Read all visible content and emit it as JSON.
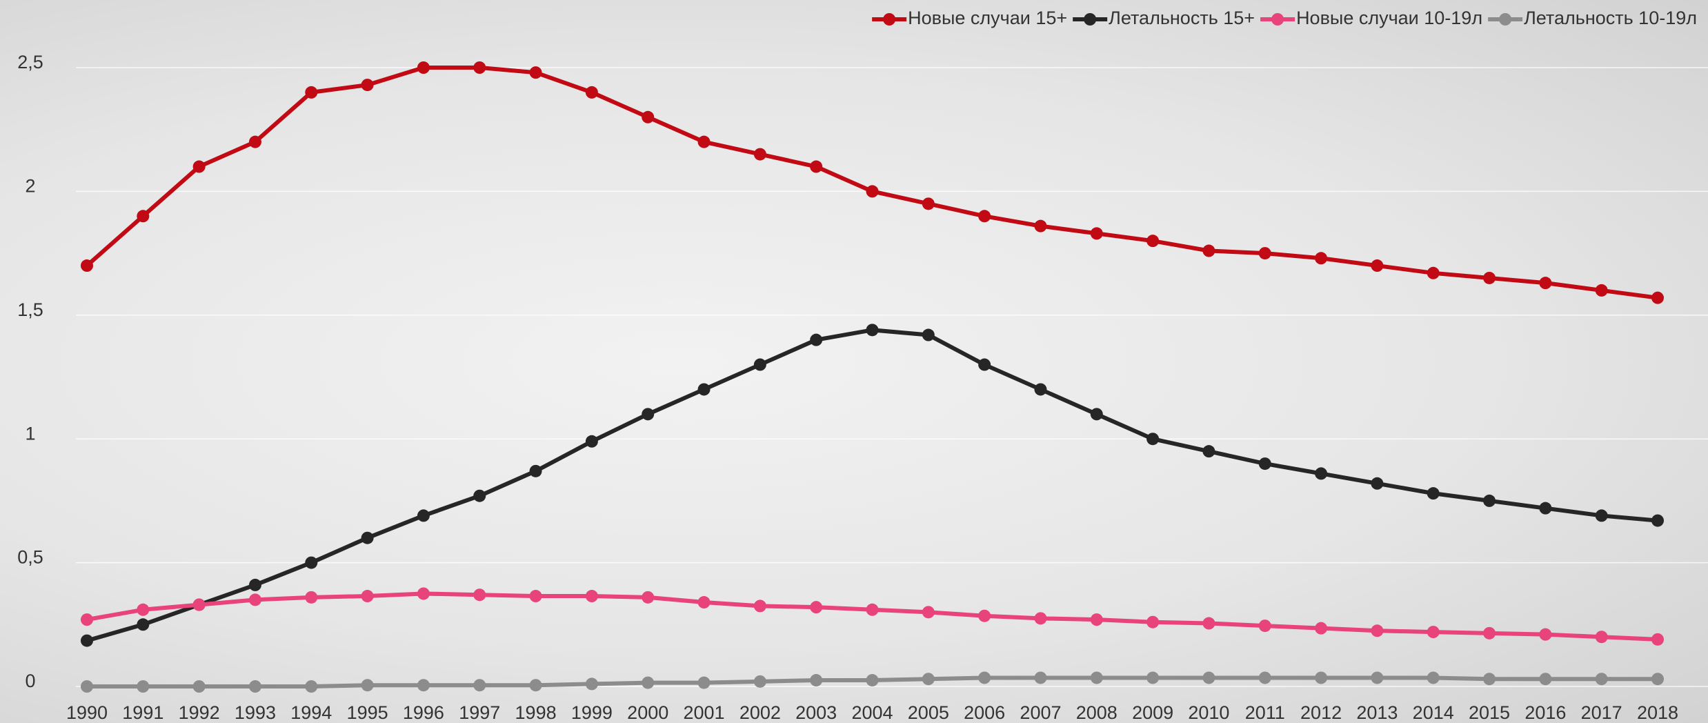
{
  "chart_data": {
    "type": "line",
    "categories": [
      "1990",
      "1991",
      "1992",
      "1993",
      "1994",
      "1995",
      "1996",
      "1997",
      "1998",
      "1999",
      "2000",
      "2001",
      "2002",
      "2003",
      "2004",
      "2005",
      "2006",
      "2007",
      "2008",
      "2009",
      "2010",
      "2011",
      "2012",
      "2013",
      "2014",
      "2015",
      "2016",
      "2017",
      "2018"
    ],
    "series": [
      {
        "name": "Новые случаи 15+",
        "color": "#c10a14",
        "values": [
          1.7,
          1.9,
          2.1,
          2.2,
          2.4,
          2.43,
          2.5,
          2.5,
          2.48,
          2.4,
          2.3,
          2.2,
          2.15,
          2.1,
          2.0,
          1.95,
          1.9,
          1.86,
          1.83,
          1.8,
          1.76,
          1.75,
          1.73,
          1.7,
          1.67,
          1.65,
          1.63,
          1.6,
          1.57
        ]
      },
      {
        "name": "Летальность 15+",
        "color": "#262626",
        "values": [
          0.185,
          0.25,
          0.33,
          0.41,
          0.5,
          0.6,
          0.69,
          0.77,
          0.87,
          0.99,
          1.1,
          1.2,
          1.3,
          1.4,
          1.44,
          1.42,
          1.3,
          1.2,
          1.1,
          1.0,
          0.95,
          0.9,
          0.86,
          0.82,
          0.78,
          0.75,
          0.72,
          0.69,
          0.67
        ]
      },
      {
        "name": "Новые случаи 10-19л",
        "color": "#e8437b",
        "values": [
          0.27,
          0.31,
          0.33,
          0.35,
          0.36,
          0.365,
          0.375,
          0.37,
          0.365,
          0.365,
          0.36,
          0.34,
          0.325,
          0.32,
          0.31,
          0.3,
          0.285,
          0.275,
          0.27,
          0.26,
          0.255,
          0.245,
          0.235,
          0.225,
          0.22,
          0.215,
          0.21,
          0.2,
          0.19
        ]
      },
      {
        "name": "Летальность 10-19л",
        "color": "#8c8c8c",
        "values": [
          0,
          0,
          0,
          0,
          0,
          0.005,
          0.005,
          0.005,
          0.005,
          0.01,
          0.015,
          0.015,
          0.02,
          0.025,
          0.025,
          0.03,
          0.035,
          0.035,
          0.035,
          0.035,
          0.035,
          0.035,
          0.035,
          0.035,
          0.035,
          0.03,
          0.03,
          0.03,
          0.03
        ]
      }
    ],
    "ylim": [
      0,
      2.5
    ],
    "yticks": [
      0,
      {
        "value": 0.5,
        "label": "0,5"
      },
      1,
      {
        "value": 1.5,
        "label": "1,5"
      },
      2,
      {
        "value": 2.5,
        "label": "2,5"
      }
    ],
    "grid": true,
    "legend": "top-right"
  }
}
